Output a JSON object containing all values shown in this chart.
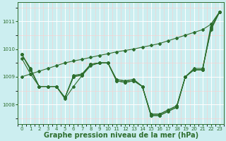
{
  "bg_color": "#cceef0",
  "grid_color": "#ffffff",
  "grid_color_minor": "#ffcccc",
  "line_color": "#2d6e2d",
  "title": "Graphe pression niveau de la mer (hPa)",
  "xlim": [
    -0.5,
    23.5
  ],
  "ylim": [
    1007.3,
    1011.7
  ],
  "yticks": [
    1008,
    1009,
    1010,
    1011
  ],
  "xticks": [
    0,
    1,
    2,
    3,
    4,
    5,
    6,
    7,
    8,
    9,
    10,
    11,
    12,
    13,
    14,
    15,
    16,
    17,
    18,
    19,
    20,
    21,
    22,
    23
  ],
  "series": [
    [
      1009.8,
      1009.3,
      1008.65,
      1008.65,
      1008.65,
      1008.2,
      1008.65,
      1009.05,
      1009.45,
      1009.5,
      1009.5,
      1008.85,
      1008.8,
      1008.85,
      1008.65,
      1007.6,
      1007.6,
      1007.75,
      1007.9,
      1009.0,
      1009.3,
      1009.3,
      1010.7,
      1011.35
    ],
    [
      1009.8,
      1009.25,
      1008.65,
      1008.65,
      1008.65,
      1008.25,
      1009.0,
      1009.05,
      1009.4,
      1009.5,
      1009.5,
      1008.85,
      1008.8,
      1008.85,
      1008.65,
      1007.6,
      1007.6,
      1007.75,
      1007.9,
      1009.0,
      1009.25,
      1009.25,
      1010.75,
      1011.35
    ],
    [
      1009.8,
      1009.25,
      1008.65,
      1008.65,
      1008.65,
      1008.25,
      1009.0,
      1009.1,
      1009.45,
      1009.5,
      1009.5,
      1008.9,
      1008.85,
      1008.9,
      1008.65,
      1007.65,
      1007.65,
      1007.8,
      1007.95,
      1009.0,
      1009.25,
      1009.25,
      1010.8,
      1011.35
    ],
    [
      1009.65,
      1009.1,
      1008.65,
      1008.65,
      1008.65,
      1008.25,
      1009.05,
      1009.1,
      1009.45,
      1009.5,
      1009.5,
      1008.9,
      1008.85,
      1008.9,
      1008.65,
      1007.65,
      1007.65,
      1007.8,
      1007.95,
      1009.0,
      1009.25,
      1009.25,
      1010.9,
      1011.35
    ]
  ],
  "series_linear": [
    1009.0,
    1009.1,
    1009.2,
    1009.3,
    1009.4,
    1009.5,
    1009.57,
    1009.63,
    1009.7,
    1009.77,
    1009.83,
    1009.9,
    1009.95,
    1010.0,
    1010.07,
    1010.13,
    1010.2,
    1010.3,
    1010.4,
    1010.5,
    1010.6,
    1010.7,
    1010.9,
    1011.35
  ],
  "markersize": 2.0,
  "linewidth": 0.8,
  "title_fontsize": 7,
  "tick_fontsize": 5
}
